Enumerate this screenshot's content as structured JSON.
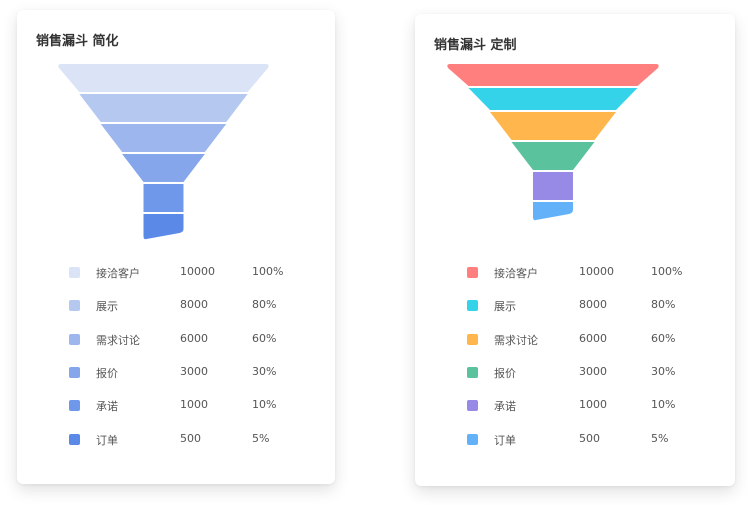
{
  "chart_data": [
    {
      "type": "funnel",
      "title": "销售漏斗 简化",
      "stages": [
        {
          "name": "接洽客户",
          "value": 10000,
          "percent": "100%",
          "color": "#dbe3f6"
        },
        {
          "name": "展示",
          "value": 8000,
          "percent": "80%",
          "color": "#b5c8f0"
        },
        {
          "name": "需求讨论",
          "value": 6000,
          "percent": "60%",
          "color": "#9db6ee"
        },
        {
          "name": "报价",
          "value": 3000,
          "percent": "30%",
          "color": "#86a6ec"
        },
        {
          "name": "承诺",
          "value": 1000,
          "percent": "10%",
          "color": "#7098ea"
        },
        {
          "name": "订单",
          "value": 500,
          "percent": "5%",
          "color": "#5b89e8"
        }
      ]
    },
    {
      "type": "funnel",
      "title": "销售漏斗 定制",
      "stages": [
        {
          "name": "接洽客户",
          "value": 10000,
          "percent": "100%",
          "color": "#ff7f7e"
        },
        {
          "name": "展示",
          "value": 8000,
          "percent": "80%",
          "color": "#35d3ea"
        },
        {
          "name": "需求讨论",
          "value": 6000,
          "percent": "60%",
          "color": "#ffb74d"
        },
        {
          "name": "报价",
          "value": 3000,
          "percent": "30%",
          "color": "#5ac29d"
        },
        {
          "name": "承诺",
          "value": 1000,
          "percent": "10%",
          "color": "#968ae6"
        },
        {
          "name": "订单",
          "value": 500,
          "percent": "5%",
          "color": "#63b1f8"
        }
      ]
    }
  ]
}
